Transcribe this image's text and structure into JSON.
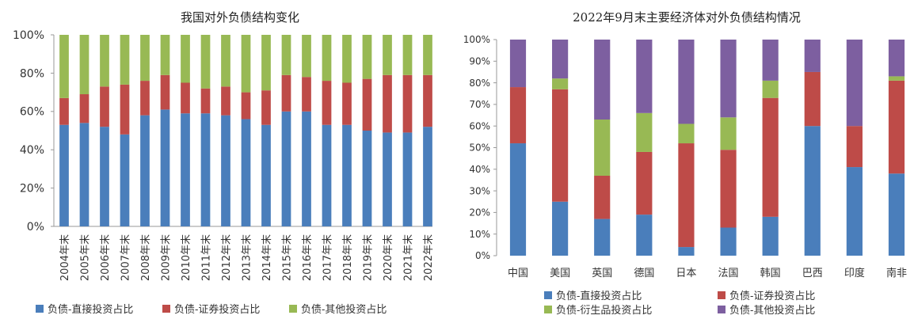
{
  "colors": {
    "direct": "#4a7ebb",
    "securities": "#be4b48",
    "derivatives": "#98b954",
    "other": "#7d5fa0"
  },
  "chart_data": [
    {
      "type": "bar",
      "stacked": true,
      "title": "我国对外负债结构变化",
      "categories": [
        "2004年末",
        "2005年末",
        "2006年末",
        "2007年末",
        "2008年末",
        "2009年末",
        "2010年末",
        "2011年末",
        "2012年末",
        "2013年末",
        "2014年末",
        "2015年末",
        "2016年末",
        "2017年末",
        "2018年末",
        "2019年末",
        "2020年末",
        "2021年末",
        "2022年末"
      ],
      "y_ticks": [
        "0%",
        "20%",
        "40%",
        "60%",
        "80%",
        "100%"
      ],
      "ylim": [
        0,
        100
      ],
      "grid": false,
      "legend_position": "bottom",
      "series": [
        {
          "name": "负债-直接投资占比",
          "color_key": "direct",
          "values": [
            53,
            54,
            52,
            48,
            58,
            61,
            59,
            59,
            58,
            56,
            53,
            60,
            60,
            53,
            53,
            50,
            49,
            49,
            52
          ]
        },
        {
          "name": "负债-证券投资占比",
          "color_key": "securities",
          "values": [
            14,
            15,
            21,
            26,
            18,
            18,
            16,
            13,
            15,
            14,
            18,
            19,
            18,
            23,
            22,
            27,
            30,
            30,
            27
          ]
        },
        {
          "name": "负债-其他投资占比",
          "color_key": "derivatives",
          "values": [
            33,
            31,
            27,
            26,
            24,
            21,
            25,
            28,
            27,
            30,
            29,
            21,
            22,
            24,
            25,
            23,
            21,
            21,
            21
          ]
        }
      ]
    },
    {
      "type": "bar",
      "stacked": true,
      "title": "2022年9月末主要经济体对外负债结构情况",
      "categories": [
        "中国",
        "美国",
        "英国",
        "德国",
        "日本",
        "法国",
        "韩国",
        "巴西",
        "印度",
        "南非"
      ],
      "y_ticks": [
        "0%",
        "10%",
        "20%",
        "30%",
        "40%",
        "50%",
        "60%",
        "70%",
        "80%",
        "90%",
        "100%"
      ],
      "ylim": [
        0,
        100
      ],
      "grid": false,
      "legend_position": "bottom",
      "series": [
        {
          "name": "负债-直接投资占比",
          "color_key": "direct",
          "values": [
            52,
            25,
            17,
            19,
            4,
            13,
            18,
            60,
            41,
            38
          ]
        },
        {
          "name": "负债-证券投资占比",
          "color_key": "securities",
          "values": [
            26,
            52,
            20,
            29,
            48,
            36,
            55,
            25,
            19,
            43
          ]
        },
        {
          "name": "负债-衍生品投资占比",
          "color_key": "derivatives",
          "values": [
            0,
            5,
            26,
            18,
            9,
            15,
            8,
            0,
            0,
            2
          ]
        },
        {
          "name": "负债-其他投资占比",
          "color_key": "other",
          "values": [
            22,
            18,
            37,
            34,
            39,
            36,
            19,
            15,
            40,
            17
          ]
        }
      ]
    }
  ]
}
